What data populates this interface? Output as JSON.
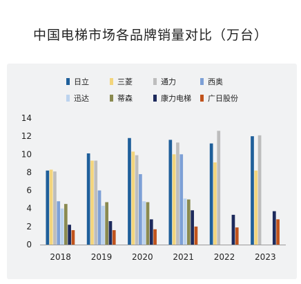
{
  "chart_data": {
    "type": "bar",
    "title": "中国电梯市场各品牌销量对比（万台）",
    "xlabel": "",
    "ylabel": "",
    "categories": [
      "2018",
      "2019",
      "2020",
      "2021",
      "2022",
      "2023"
    ],
    "ylim": [
      0,
      14
    ],
    "yticks": [
      0,
      2,
      4,
      6,
      8,
      10,
      12,
      14
    ],
    "grid": false,
    "legend_position": "top",
    "series": [
      {
        "name": "日立",
        "color": "#1f5f9a",
        "values": [
          8.2,
          10.1,
          11.8,
          11.6,
          11.2,
          12.0
        ]
      },
      {
        "name": "三菱",
        "color": "#f3d57c",
        "values": [
          8.3,
          9.3,
          10.3,
          10.0,
          9.1,
          8.2
        ]
      },
      {
        "name": "通力",
        "color": "#bdbdbd",
        "values": [
          8.1,
          9.3,
          9.9,
          11.3,
          12.6,
          12.1
        ]
      },
      {
        "name": "西奥",
        "color": "#7da0d6",
        "values": [
          4.8,
          6.0,
          7.8,
          10.0,
          null,
          null
        ]
      },
      {
        "name": "迅达",
        "color": "#bcd3ee",
        "values": [
          4.0,
          4.3,
          4.8,
          5.1,
          null,
          null
        ]
      },
      {
        "name": "蒂森",
        "color": "#8a8a50",
        "values": [
          4.5,
          4.7,
          4.7,
          5.0,
          null,
          null
        ]
      },
      {
        "name": "康力电梯",
        "color": "#1d2a5c",
        "values": [
          2.2,
          2.6,
          2.8,
          3.8,
          3.3,
          3.7
        ]
      },
      {
        "name": "广日股份",
        "color": "#c0531c",
        "values": [
          1.6,
          1.6,
          1.7,
          2.0,
          1.9,
          2.8
        ]
      }
    ]
  }
}
